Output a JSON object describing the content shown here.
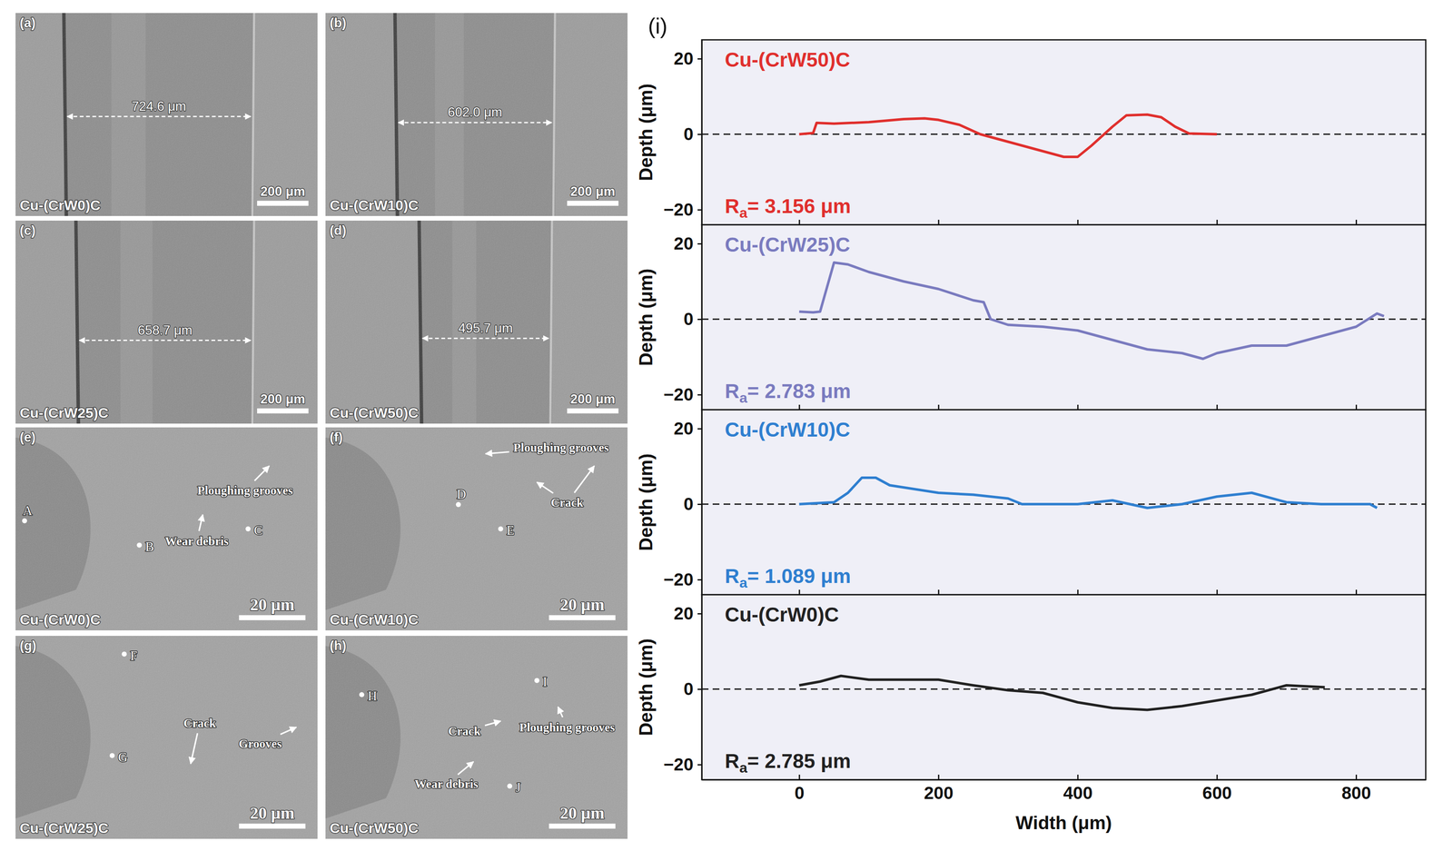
{
  "panels": [
    {
      "letter": "(a)",
      "sample": "Cu-(CrW0)C",
      "width_label": "724.6 μm",
      "scale_bar": "200 μm"
    },
    {
      "letter": "(b)",
      "sample": "Cu-(CrW10)C",
      "width_label": "602.0 μm",
      "scale_bar": "200 μm"
    },
    {
      "letter": "(c)",
      "sample": "Cu-(CrW25)C",
      "width_label": "658.7 μm",
      "scale_bar": "200 μm"
    },
    {
      "letter": "(d)",
      "sample": "Cu-(CrW50)C",
      "width_label": "495.7 μm",
      "scale_bar": "200 μm"
    },
    {
      "letter": "(e)",
      "sample": "Cu-(CrW0)C",
      "scale_bar": "20 μm",
      "points": [
        "A",
        "B",
        "C"
      ],
      "annotations": [
        "Ploughing grooves",
        "Wear debris"
      ]
    },
    {
      "letter": "(f)",
      "sample": "Cu-(CrW10)C",
      "scale_bar": "20 μm",
      "points": [
        "D",
        "E"
      ],
      "annotations": [
        "Ploughing grooves",
        "Crack"
      ]
    },
    {
      "letter": "(g)",
      "sample": "Cu-(CrW25)C",
      "scale_bar": "20 μm",
      "points": [
        "F",
        "G"
      ],
      "annotations": [
        "Crack",
        "Grooves"
      ]
    },
    {
      "letter": "(h)",
      "sample": "Cu-(CrW50)C",
      "scale_bar": "20 μm",
      "points": [
        "H",
        "I",
        "J"
      ],
      "annotations": [
        "Crack",
        "Ploughing grooves",
        "Wear debris"
      ]
    }
  ],
  "chart_label": "(i)",
  "chart_data": [
    {
      "type": "line",
      "ylabel": "Depth (μm)",
      "annotation": "Ra= 3.156 μm",
      "x": [
        0,
        20,
        25,
        50,
        100,
        150,
        180,
        200,
        230,
        260,
        300,
        350,
        380,
        400,
        420,
        450,
        470,
        500,
        520,
        540,
        560,
        600
      ],
      "series": [
        {
          "name": "Cu-(CrW50)C",
          "color": "#e0302e",
          "values": [
            0,
            0.3,
            3,
            2.8,
            3.2,
            4,
            4.2,
            3.8,
            2.5,
            0,
            -2,
            -4.5,
            -6,
            -6,
            -3,
            2,
            5,
            5.2,
            4.5,
            2,
            0.2,
            0
          ]
        }
      ],
      "reference_line": {
        "value": 0,
        "line_style": "dashed"
      },
      "xlim": [
        -140,
        900
      ],
      "ylim": [
        -24,
        25
      ],
      "xticks": [
        0,
        200,
        400,
        600,
        800
      ],
      "yticks": [
        {
          "value": -20,
          "label": "−20"
        },
        0,
        20
      ],
      "tick_labels": "y"
    },
    {
      "type": "line",
      "ylabel": "Depth (μm)",
      "annotation": "Ra= 2.783 μm",
      "x": [
        0,
        20,
        30,
        50,
        70,
        100,
        150,
        200,
        250,
        265,
        275,
        300,
        350,
        400,
        450,
        500,
        550,
        580,
        600,
        650,
        700,
        750,
        800,
        830,
        840
      ],
      "series": [
        {
          "name": "Cu-(CrW25)C",
          "color": "#7a7bbf",
          "values": [
            2,
            1.8,
            2,
            15,
            14.5,
            12.5,
            10,
            8,
            5,
            4.5,
            0,
            -1.5,
            -2,
            -3,
            -5.5,
            -8,
            -9,
            -10.5,
            -9,
            -7,
            -7,
            -4.5,
            -2,
            1.5,
            0.8
          ]
        }
      ],
      "reference_line": {
        "value": 0,
        "line_style": "dashed"
      },
      "xlim": [
        -140,
        900
      ],
      "ylim": [
        -24,
        25
      ],
      "xticks": [
        0,
        200,
        400,
        600,
        800
      ],
      "yticks": [
        {
          "value": -20,
          "label": "−20"
        },
        0,
        20
      ],
      "tick_labels": "y"
    },
    {
      "type": "line",
      "ylabel": "Depth (μm)",
      "annotation": "Ra= 1.089 μm",
      "x": [
        0,
        50,
        70,
        90,
        110,
        130,
        200,
        250,
        300,
        320,
        400,
        450,
        500,
        550,
        600,
        650,
        700,
        750,
        820,
        830
      ],
      "series": [
        {
          "name": "Cu-(CrW10)C",
          "color": "#2f7fd0",
          "values": [
            0,
            0.5,
            3,
            7,
            7,
            5,
            3,
            2.5,
            1.5,
            0,
            0,
            1,
            -1,
            0,
            2,
            3,
            0.5,
            0,
            0,
            -1
          ]
        }
      ],
      "reference_line": {
        "value": 0,
        "line_style": "dashed"
      },
      "xlim": [
        -140,
        900
      ],
      "ylim": [
        -24,
        25
      ],
      "xticks": [
        0,
        200,
        400,
        600,
        800
      ],
      "yticks": [
        {
          "value": -20,
          "label": "−20"
        },
        0,
        20
      ],
      "tick_labels": "y"
    },
    {
      "type": "line",
      "ylabel": "Depth (μm)",
      "xlabel": "Width (μm)",
      "annotation": "Ra= 2.785 μm",
      "x": [
        0,
        30,
        60,
        100,
        200,
        250,
        300,
        350,
        400,
        450,
        500,
        550,
        600,
        650,
        700,
        755
      ],
      "series": [
        {
          "name": "Cu-(CrW0)C",
          "color": "#222222",
          "values": [
            1,
            2,
            3.5,
            2.5,
            2.5,
            1,
            -0.3,
            -1,
            -3.5,
            -5,
            -5.5,
            -4.5,
            -3,
            -1.5,
            1,
            0.5
          ]
        }
      ],
      "reference_line": {
        "value": 0,
        "line_style": "dashed"
      },
      "xlim": [
        -140,
        900
      ],
      "ylim": [
        -24,
        25
      ],
      "xticks": [
        0,
        200,
        400,
        600,
        800
      ],
      "yticks": [
        {
          "value": -20,
          "label": "−20"
        },
        0,
        20
      ]
    }
  ]
}
